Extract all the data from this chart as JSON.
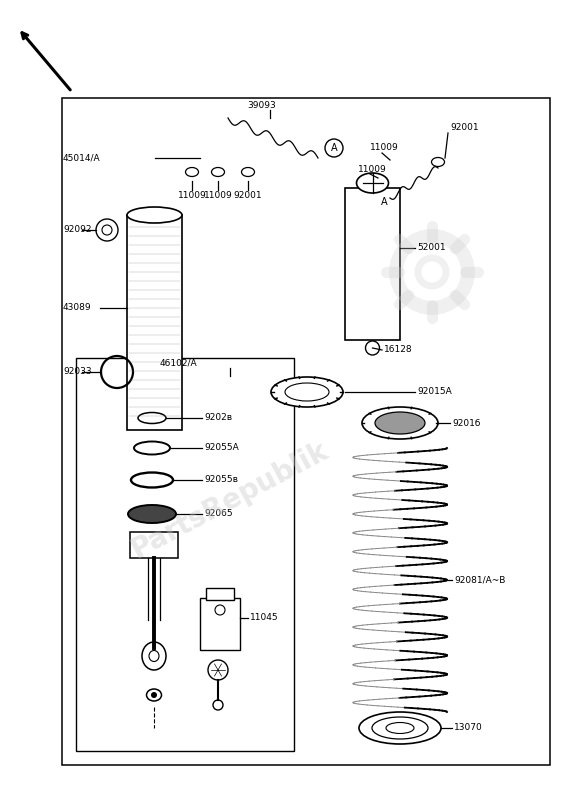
{
  "bg_color": "#ffffff",
  "line_color": "#000000",
  "label_fontsize": 6.5,
  "parts": {
    "45014A": "45014/A",
    "39093": "39093",
    "92001_tr": "92001",
    "11009_a": "11009",
    "11009_b": "11009",
    "11009_c": "11009",
    "92001_ml": "92001",
    "92092": "92092",
    "43089": "43089",
    "92033": "92033",
    "46102A": "46102/A",
    "52001": "52001",
    "16128": "16128",
    "92015A": "92015A",
    "9201b": "9201б",
    "9202b": "9202в",
    "92055A": "92055A",
    "92055B": "92055в",
    "92065": "92065",
    "11045": "11045",
    "92081AB": "92081/A~B",
    "13070": "13070"
  }
}
